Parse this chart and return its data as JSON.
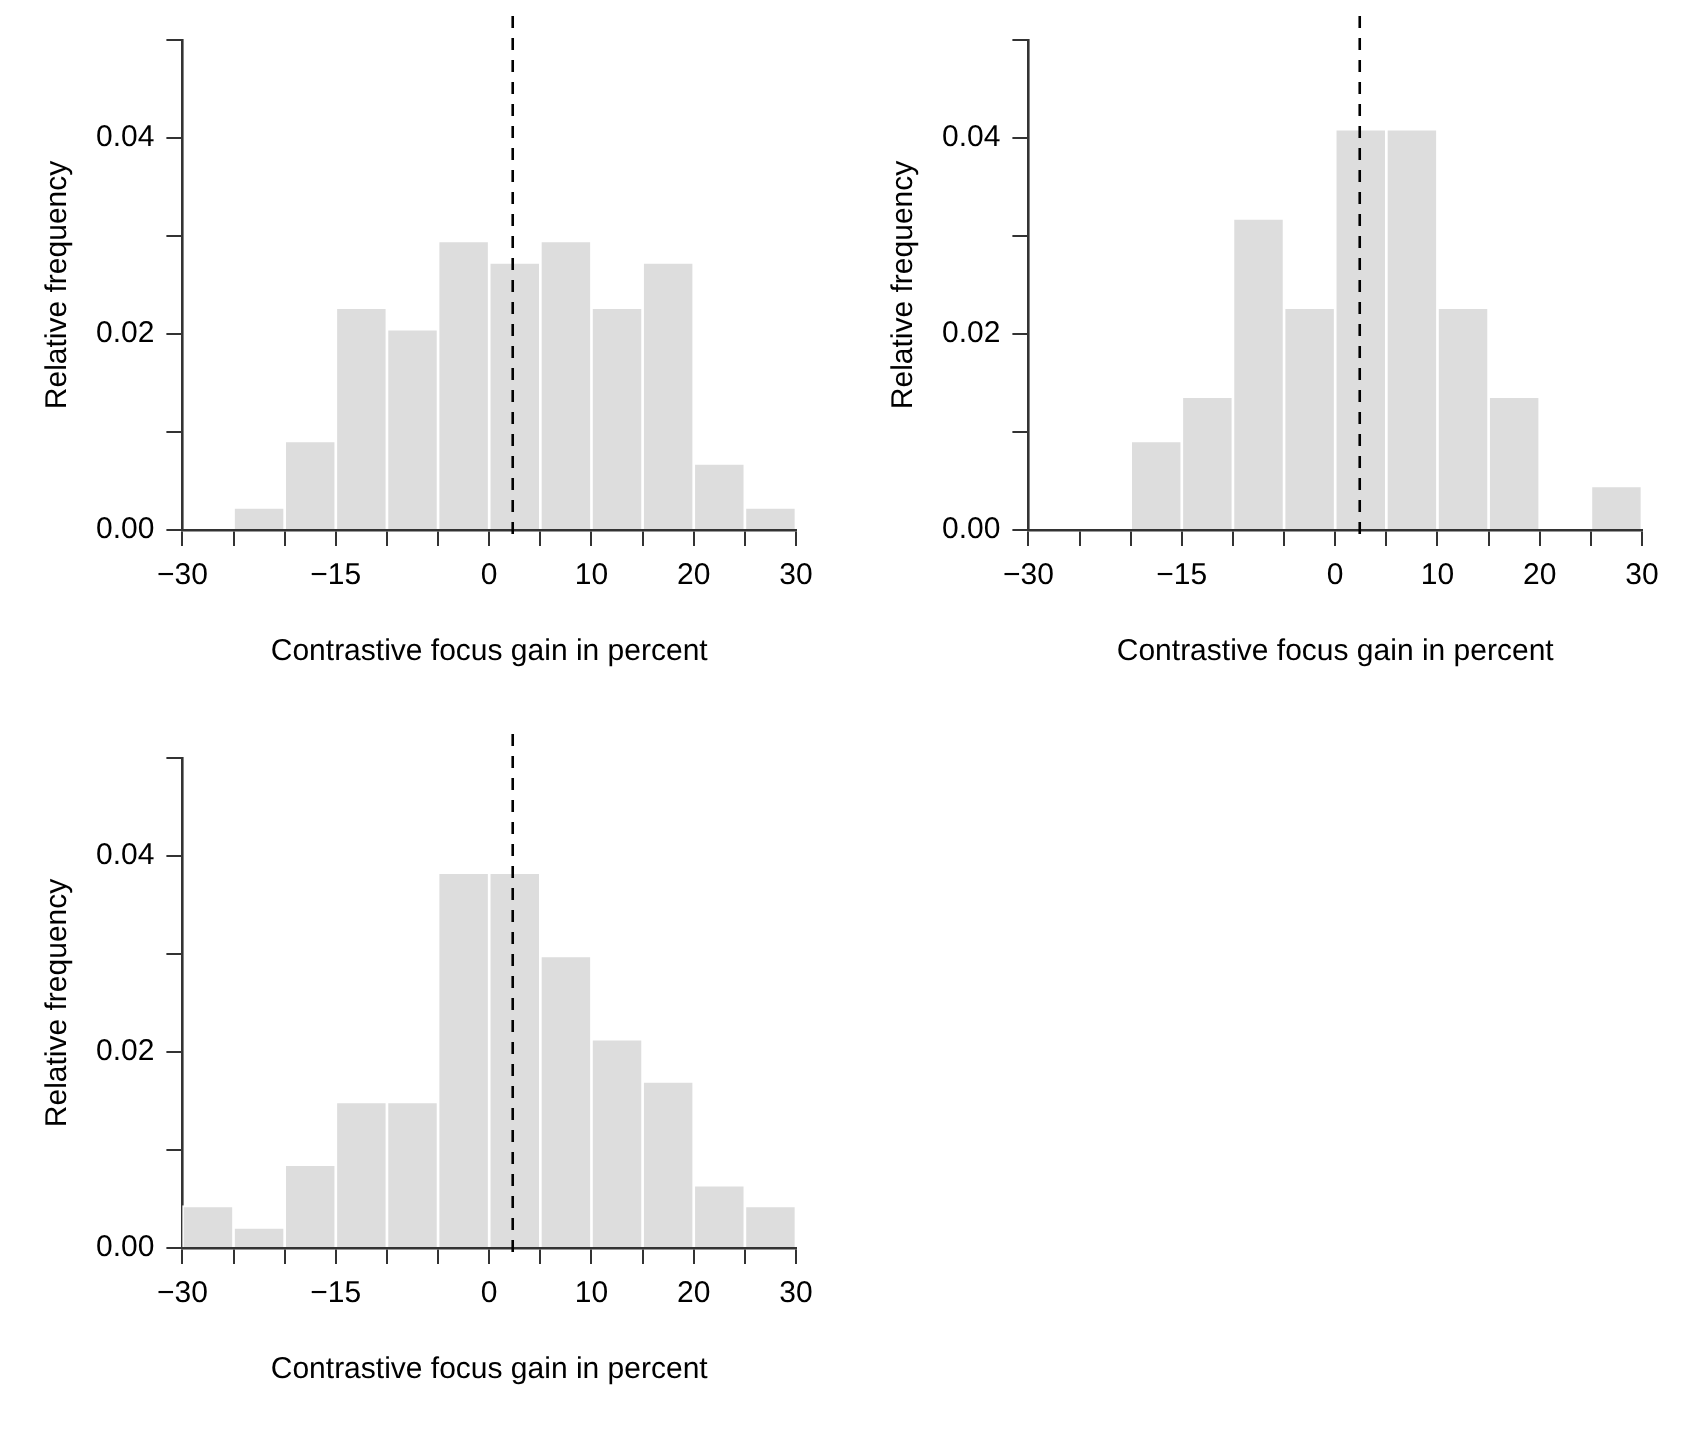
{
  "chart_data": [
    {
      "type": "histogram",
      "xlabel": "Contrastive focus gain in percent",
      "ylabel": "Relative frequency",
      "bins": [
        -30,
        -25,
        -20,
        -15,
        -10,
        -5,
        0,
        5,
        10,
        15,
        20,
        25,
        30
      ],
      "values": [
        0,
        0.0023,
        0.0091,
        0.0227,
        0.0205,
        0.0295,
        0.0273,
        0.0295,
        0.0227,
        0.0273,
        0.0068,
        0.0023
      ],
      "color": "#dddddd",
      "xlim": [
        -30,
        30
      ],
      "ylim": [
        0,
        0.05
      ],
      "xticks": [
        {
          "value": -30,
          "label": "−30"
        },
        {
          "value": -25,
          "label": null
        },
        {
          "value": -20,
          "label": null
        },
        {
          "value": -15,
          "label": "−15"
        },
        {
          "value": -10,
          "label": null
        },
        {
          "value": -5,
          "label": null
        },
        0,
        {
          "value": 5,
          "label": null
        },
        10,
        {
          "value": 15,
          "label": null
        },
        20,
        {
          "value": 25,
          "label": null
        },
        30
      ],
      "yticks": [
        {
          "value": 0,
          "label": "0.00"
        },
        {
          "value": 0.01,
          "label": null
        },
        {
          "value": 0.02,
          "label": "0.02"
        },
        {
          "value": 0.03,
          "label": null
        },
        {
          "value": 0.04,
          "label": "0.04"
        },
        {
          "value": 0.05,
          "label": null
        }
      ],
      "ref_lines": [
        {
          "axis": "x",
          "value": 2.3,
          "color": "#000000",
          "line_style": "dashed"
        }
      ],
      "grid": false,
      "legend": false
    },
    {
      "type": "histogram",
      "xlabel": "Contrastive focus gain in percent",
      "ylabel": "Relative frequency",
      "bins": [
        -30,
        -25,
        -20,
        -15,
        -10,
        -5,
        0,
        5,
        10,
        15,
        20,
        25,
        30
      ],
      "values": [
        0,
        0,
        0.0091,
        0.0136,
        0.0318,
        0.0227,
        0.0409,
        0.0409,
        0.0227,
        0.0136,
        0,
        0.0045
      ],
      "color": "#dddddd",
      "xlim": [
        -30,
        30
      ],
      "ylim": [
        0,
        0.05
      ],
      "xticks": [
        {
          "value": -30,
          "label": "−30"
        },
        {
          "value": -25,
          "label": null
        },
        {
          "value": -20,
          "label": null
        },
        {
          "value": -15,
          "label": "−15"
        },
        {
          "value": -10,
          "label": null
        },
        {
          "value": -5,
          "label": null
        },
        0,
        {
          "value": 5,
          "label": null
        },
        10,
        {
          "value": 15,
          "label": null
        },
        20,
        {
          "value": 25,
          "label": null
        },
        30
      ],
      "yticks": [
        {
          "value": 0,
          "label": "0.00"
        },
        {
          "value": 0.01,
          "label": null
        },
        {
          "value": 0.02,
          "label": "0.02"
        },
        {
          "value": 0.03,
          "label": null
        },
        {
          "value": 0.04,
          "label": "0.04"
        },
        {
          "value": 0.05,
          "label": null
        }
      ],
      "ref_lines": [
        {
          "axis": "x",
          "value": 2.4,
          "color": "#000000",
          "line_style": "dashed"
        }
      ],
      "grid": false,
      "legend": false
    },
    {
      "type": "histogram",
      "xlabel": "Contrastive focus gain in percent",
      "ylabel": "Relative frequency",
      "bins": [
        -30,
        -25,
        -20,
        -15,
        -10,
        -5,
        0,
        5,
        10,
        15,
        20,
        25,
        30
      ],
      "values": [
        0.0043,
        0.0021,
        0.0085,
        0.0149,
        0.0149,
        0.0383,
        0.0383,
        0.0298,
        0.0213,
        0.017,
        0.0064,
        0.0043
      ],
      "color": "#dddddd",
      "xlim": [
        -30,
        30
      ],
      "ylim": [
        0,
        0.05
      ],
      "xticks": [
        {
          "value": -30,
          "label": "−30"
        },
        {
          "value": -25,
          "label": null
        },
        {
          "value": -20,
          "label": null
        },
        {
          "value": -15,
          "label": "−15"
        },
        {
          "value": -10,
          "label": null
        },
        {
          "value": -5,
          "label": null
        },
        0,
        {
          "value": 5,
          "label": null
        },
        10,
        {
          "value": 15,
          "label": null
        },
        20,
        {
          "value": 25,
          "label": null
        },
        30
      ],
      "yticks": [
        {
          "value": 0,
          "label": "0.00"
        },
        {
          "value": 0.01,
          "label": null
        },
        {
          "value": 0.02,
          "label": "0.02"
        },
        {
          "value": 0.03,
          "label": null
        },
        {
          "value": 0.04,
          "label": "0.04"
        },
        {
          "value": 0.05,
          "label": null
        }
      ],
      "ref_lines": [
        {
          "axis": "x",
          "value": 2.3,
          "color": "#000000",
          "line_style": "dashed"
        }
      ],
      "grid": false,
      "legend": false
    }
  ]
}
